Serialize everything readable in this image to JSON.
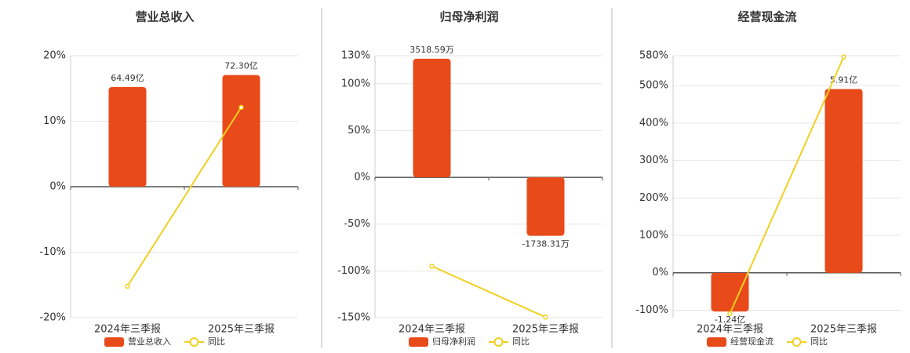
{
  "chart_data": [
    {
      "type": "bar-line",
      "title": "营业总收入",
      "categories": [
        "2024年三季报",
        "2025年三季报"
      ],
      "series": [
        {
          "name": "营业总收入",
          "color": "#e84a1a",
          "axis": "y2",
          "values": [
            64.49,
            72.3
          ],
          "value_labels": [
            "64.49亿",
            "72.30亿"
          ]
        },
        {
          "name": "同比",
          "color": "#f0d020",
          "axis": "y",
          "values": [
            -15.2,
            12.11
          ]
        }
      ],
      "ylim": [
        -20,
        20
      ],
      "y2lim": [
        -84.8,
        84.8
      ],
      "yticks": [
        {
          "value": -20,
          "label": "-20%"
        },
        {
          "value": -10,
          "label": "-10%"
        },
        {
          "value": 0,
          "label": "0%"
        },
        {
          "value": 10,
          "label": "10%"
        },
        {
          "value": 20,
          "label": "20%"
        }
      ],
      "grid": true
    },
    {
      "type": "bar-line",
      "title": "归母净利润",
      "categories": [
        "2024年三季报",
        "2025年三季报"
      ],
      "series": [
        {
          "name": "归母净利润",
          "color": "#e84a1a",
          "axis": "y2",
          "values": [
            3518.59,
            -1738.31
          ],
          "value_labels": [
            "3518.59万",
            "-1738.31万"
          ]
        },
        {
          "name": "同比",
          "color": "#f0d020",
          "axis": "y",
          "values": [
            -95,
            -149.4
          ]
        }
      ],
      "ylim": [
        -150,
        130
      ],
      "y2lim": [
        -4170,
        3610
      ],
      "yticks": [
        {
          "value": -150,
          "label": "-150%"
        },
        {
          "value": -100,
          "label": "-100%"
        },
        {
          "value": -50,
          "label": "-50%"
        },
        {
          "value": 0,
          "label": "0%"
        },
        {
          "value": 50,
          "label": "50%"
        },
        {
          "value": 100,
          "label": "100%"
        },
        {
          "value": 130,
          "label": "130%"
        }
      ],
      "grid": true
    },
    {
      "type": "bar-line",
      "title": "经营现金流",
      "categories": [
        "2024年三季报",
        "2025年三季报"
      ],
      "series": [
        {
          "name": "经营现金流",
          "color": "#e84a1a",
          "axis": "y2",
          "values": [
            -1.24,
            5.91
          ],
          "value_labels": [
            "-1.24亿",
            "5.91亿"
          ]
        },
        {
          "name": "同比",
          "color": "#f0d020",
          "axis": "y",
          "values": [
            -109,
            576.6
          ]
        }
      ],
      "ylim": [
        -120,
        580
      ],
      "y2lim": [
        -1.44,
        6.98
      ],
      "yticks": [
        {
          "value": -100,
          "label": "-100%"
        },
        {
          "value": 0,
          "label": "0%"
        },
        {
          "value": 100,
          "label": "100%"
        },
        {
          "value": 200,
          "label": "200%"
        },
        {
          "value": 300,
          "label": "300%"
        },
        {
          "value": 400,
          "label": "400%"
        },
        {
          "value": 500,
          "label": "500%"
        },
        {
          "value": 580,
          "label": "580%"
        }
      ],
      "grid": true
    }
  ]
}
